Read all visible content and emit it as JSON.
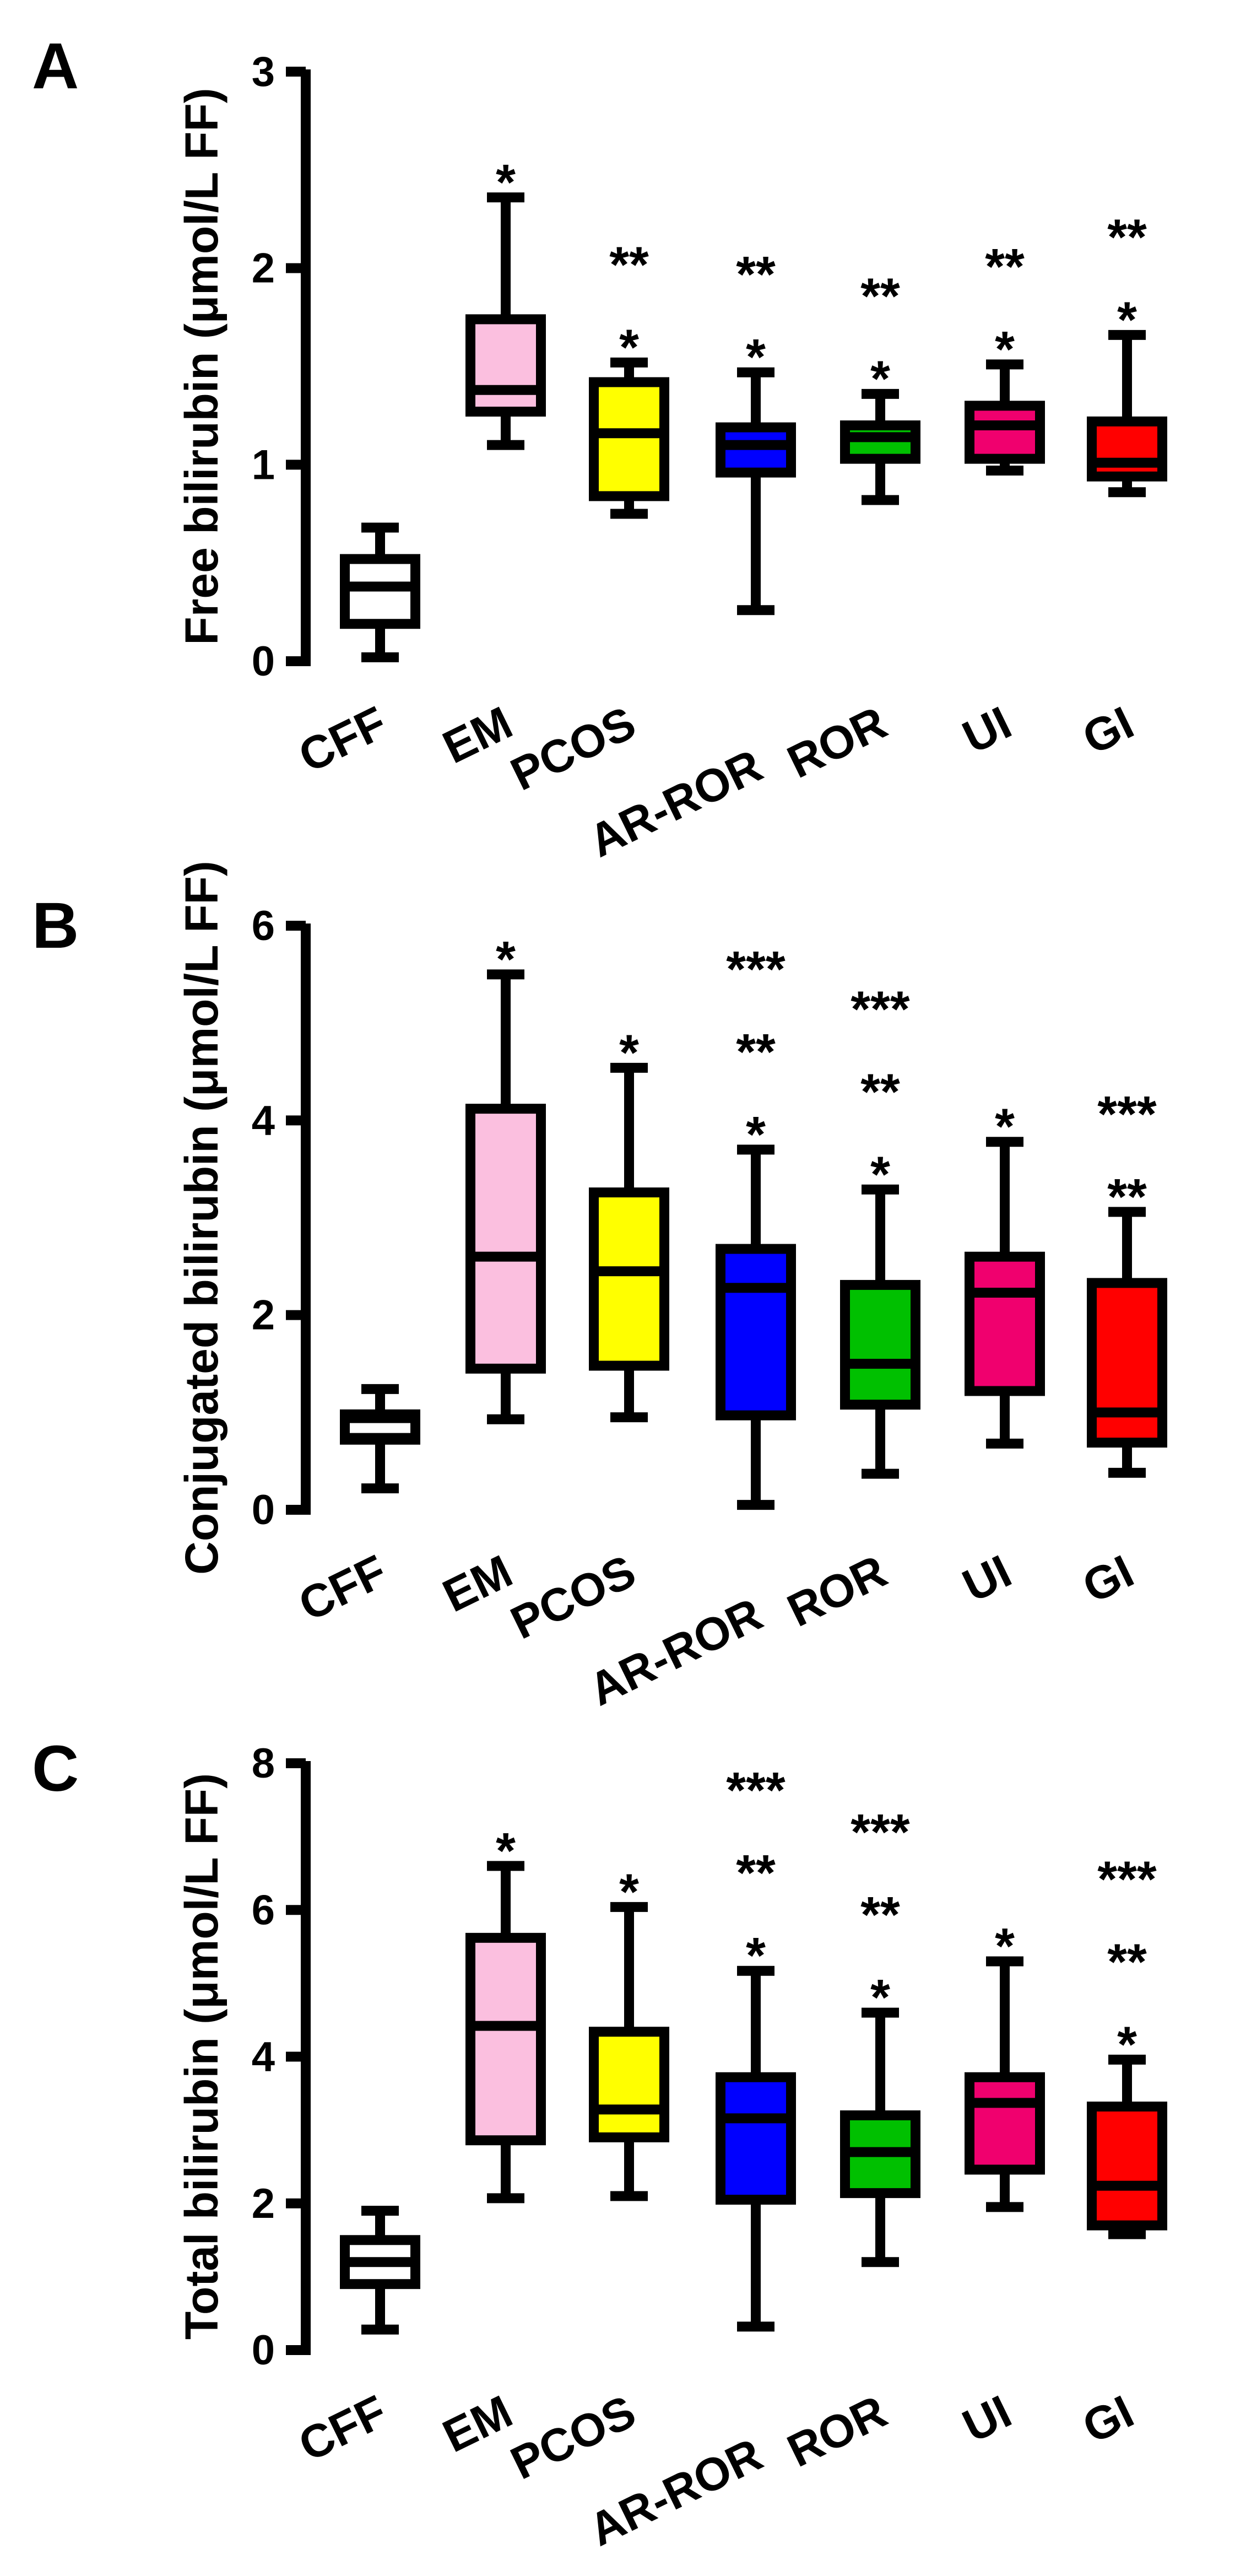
{
  "chart_data": [
    {
      "panel_label": "A",
      "type": "box",
      "title": "",
      "xlabel": "",
      "ylabel": "Free bilirubin (μmol/L FF)",
      "ylim": [
        0,
        3
      ],
      "yticks": [
        "0",
        "1",
        "2",
        "3"
      ],
      "categories": [
        "CFF",
        "EM",
        "PCOS",
        "AR-ROR",
        "ROR",
        "UI",
        "GI"
      ],
      "colors": [
        "#ffffff",
        "#fbbfdf",
        "#ffff00",
        "#0000ff",
        "#00c000",
        "#f0006e",
        "#ff0000"
      ],
      "median_colors": [
        "#000000",
        "#000000",
        "#000000",
        "#000000",
        "#000000",
        "#000000",
        "#000000"
      ],
      "boxes": [
        {
          "min": 0.02,
          "q1": 0.19,
          "median": 0.38,
          "q3": 0.52,
          "max": 0.68
        },
        {
          "min": 1.1,
          "q1": 1.27,
          "median": 1.38,
          "q3": 1.74,
          "max": 2.36
        },
        {
          "min": 0.75,
          "q1": 0.84,
          "median": 1.16,
          "q3": 1.42,
          "max": 1.52
        },
        {
          "min": 0.26,
          "q1": 0.96,
          "median": 1.1,
          "q3": 1.19,
          "max": 1.47
        },
        {
          "min": 0.82,
          "q1": 1.03,
          "median": 1.14,
          "q3": 1.2,
          "max": 1.36
        },
        {
          "min": 0.97,
          "q1": 1.03,
          "median": 1.2,
          "q3": 1.3,
          "max": 1.51
        },
        {
          "min": 0.86,
          "q1": 0.94,
          "median": 1.01,
          "q3": 1.22,
          "max": 1.66
        }
      ],
      "significance": [
        [],
        [
          "*"
        ],
        [
          "**",
          "*"
        ],
        [
          "**",
          "*"
        ],
        [
          "**",
          "*"
        ],
        [
          "**",
          "*"
        ],
        [
          "**",
          "*"
        ]
      ]
    },
    {
      "panel_label": "B",
      "type": "box",
      "title": "",
      "xlabel": "",
      "ylabel": "Conjugated bilirubin (μmol/L FF)",
      "ylim": [
        0,
        6
      ],
      "yticks": [
        "0",
        "2",
        "4",
        "6"
      ],
      "categories": [
        "CFF",
        "EM",
        "PCOS",
        "AR-ROR",
        "ROR",
        "UI",
        "GI"
      ],
      "colors": [
        "#000000",
        "#fbbfdf",
        "#ffff00",
        "#0000ff",
        "#00c000",
        "#f0006e",
        "#ff0000"
      ],
      "median_colors": [
        "#ffffff",
        "#000000",
        "#000000",
        "#000000",
        "#000000",
        "#000000",
        "#000000"
      ],
      "boxes": [
        {
          "min": 0.22,
          "q1": 0.72,
          "median": 0.84,
          "q3": 0.98,
          "max": 1.24
        },
        {
          "min": 0.93,
          "q1": 1.45,
          "median": 2.6,
          "q3": 4.12,
          "max": 5.5
        },
        {
          "min": 0.95,
          "q1": 1.48,
          "median": 2.45,
          "q3": 3.26,
          "max": 4.54
        },
        {
          "min": 0.05,
          "q1": 0.97,
          "median": 2.28,
          "q3": 2.68,
          "max": 3.7
        },
        {
          "min": 0.37,
          "q1": 1.08,
          "median": 1.5,
          "q3": 2.31,
          "max": 3.29
        },
        {
          "min": 0.68,
          "q1": 1.22,
          "median": 2.23,
          "q3": 2.6,
          "max": 3.78
        },
        {
          "min": 0.38,
          "q1": 0.69,
          "median": 1.0,
          "q3": 2.33,
          "max": 3.06
        }
      ],
      "significance": [
        [],
        [
          "*"
        ],
        [
          "*"
        ],
        [
          "***",
          "**",
          "*"
        ],
        [
          "***",
          "**",
          "*"
        ],
        [
          "*"
        ],
        [
          "***",
          "**"
        ]
      ]
    },
    {
      "panel_label": "C",
      "type": "box",
      "title": "",
      "xlabel": "",
      "ylabel": "Total bilirubin (μmol/L FF)",
      "ylim": [
        0,
        8
      ],
      "yticks": [
        "0",
        "2",
        "4",
        "6",
        "8"
      ],
      "categories": [
        "CFF",
        "EM",
        "PCOS",
        "AR-ROR",
        "ROR",
        "UI",
        "GI"
      ],
      "colors": [
        "#ffffff",
        "#fbbfdf",
        "#ffff00",
        "#0000ff",
        "#00c000",
        "#f0006e",
        "#ff0000"
      ],
      "median_colors": [
        "#000000",
        "#000000",
        "#000000",
        "#000000",
        "#000000",
        "#000000",
        "#000000"
      ],
      "boxes": [
        {
          "min": 0.28,
          "q1": 0.9,
          "median": 1.2,
          "q3": 1.5,
          "max": 1.9
        },
        {
          "min": 2.07,
          "q1": 2.86,
          "median": 4.42,
          "q3": 5.62,
          "max": 6.6
        },
        {
          "min": 2.1,
          "q1": 2.9,
          "median": 3.28,
          "q3": 4.34,
          "max": 6.04
        },
        {
          "min": 0.32,
          "q1": 2.05,
          "median": 3.16,
          "q3": 3.72,
          "max": 5.17
        },
        {
          "min": 1.2,
          "q1": 2.14,
          "median": 2.7,
          "q3": 3.2,
          "max": 4.6
        },
        {
          "min": 1.95,
          "q1": 2.46,
          "median": 3.37,
          "q3": 3.72,
          "max": 5.3
        },
        {
          "min": 1.58,
          "q1": 1.7,
          "median": 2.24,
          "q3": 3.32,
          "max": 3.96
        }
      ],
      "significance": [
        [],
        [
          "*"
        ],
        [
          "*"
        ],
        [
          "***",
          "**",
          "*"
        ],
        [
          "***",
          "**",
          "*"
        ],
        [
          "*"
        ],
        [
          "***",
          "**",
          "*"
        ]
      ]
    }
  ]
}
